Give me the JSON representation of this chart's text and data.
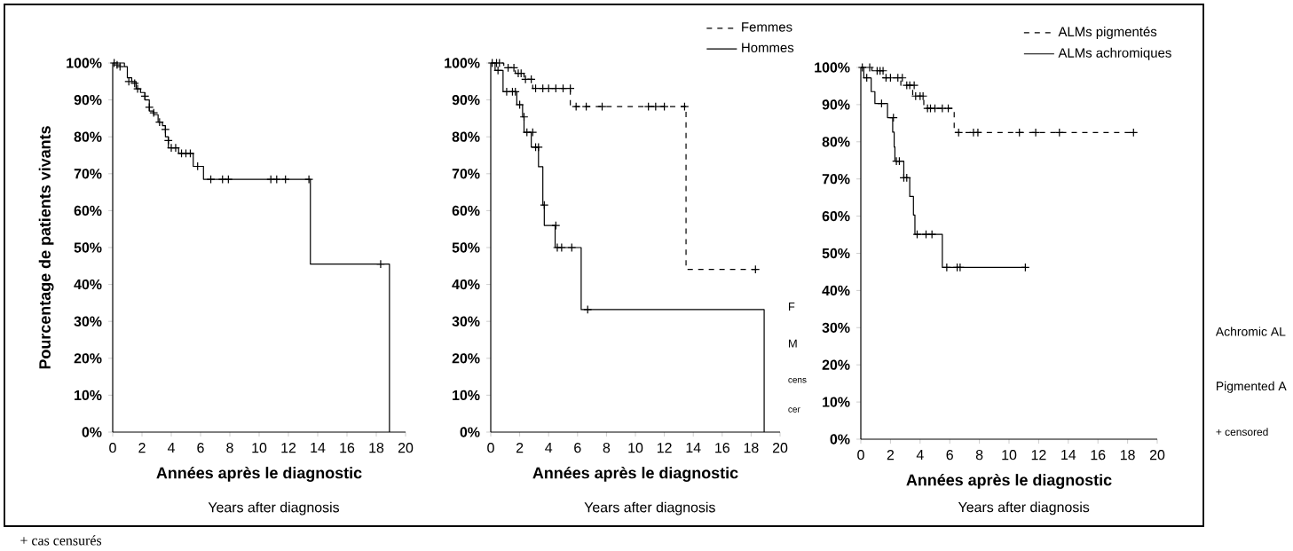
{
  "chart_data": [
    {
      "type": "step",
      "xlabel": "Années après le diagnostic",
      "ylabel": "Pourcentage de patients vivants",
      "annotations": [
        "Years after diagnosis",
        "+ cas censurés"
      ],
      "xlim": [
        0,
        20
      ],
      "ylim": [
        0,
        100
      ],
      "xticks": [
        0,
        2,
        4,
        6,
        8,
        10,
        12,
        14,
        16,
        18,
        20
      ],
      "yticks": [
        {
          "value": 0,
          "label": "0%"
        },
        {
          "value": 10,
          "label": "10%"
        },
        {
          "value": 20,
          "label": "20%"
        },
        {
          "value": 30,
          "label": "30%"
        },
        {
          "value": 40,
          "label": "40%"
        },
        {
          "value": 50,
          "label": "50%"
        },
        {
          "value": 60,
          "label": "60%"
        },
        {
          "value": 70,
          "label": "70%"
        },
        {
          "value": 80,
          "label": "80%"
        },
        {
          "value": 90,
          "label": "90%"
        },
        {
          "value": 100,
          "label": "100%"
        }
      ],
      "series": [
        {
          "color": "#000000",
          "marker": "none",
          "line_style": "solid",
          "x": [
            0,
            0.8,
            1.0,
            1.3,
            1.6,
            1.9,
            2.2,
            2.5,
            2.8,
            3.1,
            3.4,
            3.6,
            3.8,
            4.5,
            5.5,
            6.2,
            13.5,
            18.9
          ],
          "values": [
            100,
            99,
            96,
            95,
            93,
            92,
            90,
            87,
            86,
            84,
            83,
            80,
            77,
            75.5,
            72,
            68.5,
            45.5,
            0
          ]
        },
        {
          "type": "scatter",
          "color": "#000000",
          "marker": "cross",
          "x": [
            0.1,
            0.3,
            0.5,
            1.1,
            1.5,
            1.7,
            2.2,
            2.5,
            2.8,
            3.2,
            3.6,
            3.8,
            4.0,
            4.3,
            4.7,
            5.0,
            5.3,
            5.8,
            6.7,
            7.5,
            7.9,
            10.8,
            11.2,
            11.8,
            13.4,
            18.3
          ],
          "values": [
            100,
            99.5,
            99,
            95,
            94.5,
            93,
            91,
            88,
            86.5,
            84,
            82,
            79,
            77,
            77,
            75.5,
            75.5,
            75.5,
            72,
            68.5,
            68.5,
            68.5,
            68.5,
            68.5,
            68.5,
            68.5,
            45.5
          ]
        }
      ]
    },
    {
      "type": "step",
      "xlabel": "Années après le diagnostic",
      "annotations": [
        "Years after diagnosis",
        "F",
        "M",
        "cens",
        "cer"
      ],
      "legend": "top right",
      "xlim": [
        0,
        20
      ],
      "ylim": [
        0,
        100
      ],
      "xticks": [
        0,
        2,
        4,
        6,
        8,
        10,
        12,
        14,
        16,
        18,
        20
      ],
      "yticks": [
        {
          "value": 0,
          "label": "0%"
        },
        {
          "value": 10,
          "label": "10%"
        },
        {
          "value": 20,
          "label": "20%"
        },
        {
          "value": 30,
          "label": "30%"
        },
        {
          "value": 40,
          "label": "40%"
        },
        {
          "value": 50,
          "label": "50%"
        },
        {
          "value": 60,
          "label": "60%"
        },
        {
          "value": 70,
          "label": "70%"
        },
        {
          "value": 80,
          "label": "80%"
        },
        {
          "value": 90,
          "label": "90%"
        },
        {
          "value": 100,
          "label": "100%"
        }
      ],
      "series": [
        {
          "name": "Femmes",
          "color": "#000000",
          "marker": "none",
          "line_style": "dashed",
          "x": [
            0,
            0.9,
            1.7,
            2.3,
            2.9,
            5.5,
            13.5,
            18.4
          ],
          "values": [
            100,
            98.7,
            97.2,
            95.6,
            93.1,
            88.2,
            44.1,
            44.1
          ]
        },
        {
          "name": "Hommes",
          "color": "#000000",
          "marker": "none",
          "line_style": "solid",
          "x": [
            0,
            0.3,
            0.85,
            1.8,
            2.2,
            2.3,
            2.8,
            3.3,
            3.6,
            3.7,
            4.45,
            6.25,
            18.9
          ],
          "values": [
            100,
            98,
            92.2,
            88.7,
            85.4,
            81.2,
            77.2,
            71.9,
            61.5,
            56,
            50,
            33.2,
            0
          ]
        },
        {
          "type": "scatter",
          "color": "#000000",
          "marker": "cross",
          "x": [
            0.1,
            0.4,
            0.6,
            1.2,
            1.6,
            1.9,
            2.1,
            2.4,
            2.8,
            3.1,
            3.6,
            4.0,
            4.5,
            5.0,
            5.5,
            5.9,
            6.6,
            7.7,
            10.9,
            11.4,
            12.0,
            13.4,
            18.3
          ],
          "values": [
            100,
            100,
            100,
            98.7,
            98.7,
            97.2,
            97.2,
            95.6,
            95.6,
            93.1,
            93.1,
            93.1,
            93.1,
            93.1,
            93.1,
            88.2,
            88.2,
            88.2,
            88.2,
            88.2,
            88.2,
            88.2,
            44.1
          ]
        },
        {
          "type": "scatter",
          "color": "#000000",
          "marker": "cross",
          "x": [
            0.5,
            1.1,
            1.5,
            1.7,
            2.0,
            2.3,
            2.5,
            2.9,
            3.1,
            3.3,
            3.7,
            4.5,
            4.6,
            4.9,
            5.6,
            6.7
          ],
          "values": [
            98,
            92.2,
            92.2,
            92.2,
            88.7,
            85.4,
            81.2,
            81.2,
            77.2,
            77.2,
            61.5,
            56,
            50,
            50,
            50,
            33.2
          ]
        }
      ]
    },
    {
      "type": "step",
      "xlabel": "Années après le diagnostic",
      "annotations": [
        "Years after diagnosis",
        "Achromic AL",
        "Pigmented A",
        "+ censored"
      ],
      "legend": "top right",
      "xlim": [
        0,
        20
      ],
      "ylim": [
        0,
        100
      ],
      "xticks": [
        0,
        2,
        4,
        6,
        8,
        10,
        12,
        14,
        16,
        18,
        20
      ],
      "yticks": [
        {
          "value": 0,
          "label": "0%"
        },
        {
          "value": 10,
          "label": "10%"
        },
        {
          "value": 20,
          "label": "20%"
        },
        {
          "value": 30,
          "label": "30%"
        },
        {
          "value": 40,
          "label": "40%"
        },
        {
          "value": 50,
          "label": "50%"
        },
        {
          "value": 60,
          "label": "60%"
        },
        {
          "value": 70,
          "label": "70%"
        },
        {
          "value": 80,
          "label": "80%"
        },
        {
          "value": 90,
          "label": "90%"
        },
        {
          "value": 100,
          "label": "100%"
        }
      ],
      "series": [
        {
          "name": "ALMs pigmentés",
          "color": "#000000",
          "marker": "none",
          "line_style": "dashed",
          "x": [
            0,
            0.75,
            1.5,
            2.7,
            3.5,
            4.25,
            6.3,
            18.4
          ],
          "values": [
            100,
            99.1,
            97.2,
            95.2,
            92.3,
            89,
            82.5,
            82.5
          ]
        },
        {
          "name": "ALMs achromiques",
          "color": "#000000",
          "marker": "none",
          "line_style": "solid",
          "x": [
            0,
            0.2,
            0.7,
            0.95,
            1.8,
            2.15,
            2.25,
            2.3,
            2.9,
            3.3,
            3.55,
            3.65,
            5.5,
            11.1
          ],
          "values": [
            100,
            97.2,
            93.5,
            90.3,
            86.5,
            82.6,
            78.6,
            74.8,
            70.3,
            65.3,
            60.3,
            55.1,
            46.2,
            46.2
          ]
        },
        {
          "type": "scatter",
          "color": "#000000",
          "marker": "cross",
          "x": [
            0.1,
            0.6,
            1.1,
            1.3,
            1.5,
            1.7,
            2.0,
            2.5,
            2.8,
            3.1,
            3.3,
            3.6,
            3.7,
            4.0,
            4.2,
            4.5,
            4.7,
            5.0,
            5.5,
            5.9,
            6.6,
            7.6,
            7.9,
            10.7,
            11.8,
            13.4,
            18.4
          ],
          "values": [
            100,
            100,
            99.1,
            99.1,
            99.1,
            97.2,
            97.2,
            97.2,
            97.2,
            95.2,
            95.2,
            95.2,
            92.3,
            92.3,
            92.3,
            89,
            89,
            89,
            89,
            89,
            82.5,
            82.5,
            82.5,
            82.5,
            82.5,
            82.5,
            82.5
          ]
        },
        {
          "type": "scatter",
          "color": "#000000",
          "marker": "cross",
          "x": [
            0.4,
            1.4,
            2.2,
            2.4,
            2.6,
            2.9,
            3.1,
            3.8,
            4.4,
            4.8,
            5.8,
            6.5,
            6.7,
            11.1
          ],
          "values": [
            97.2,
            90.3,
            86.5,
            74.8,
            74.8,
            70.3,
            70.3,
            55.1,
            55.1,
            55.1,
            46.2,
            46.2,
            46.2,
            46.2
          ]
        }
      ]
    }
  ]
}
